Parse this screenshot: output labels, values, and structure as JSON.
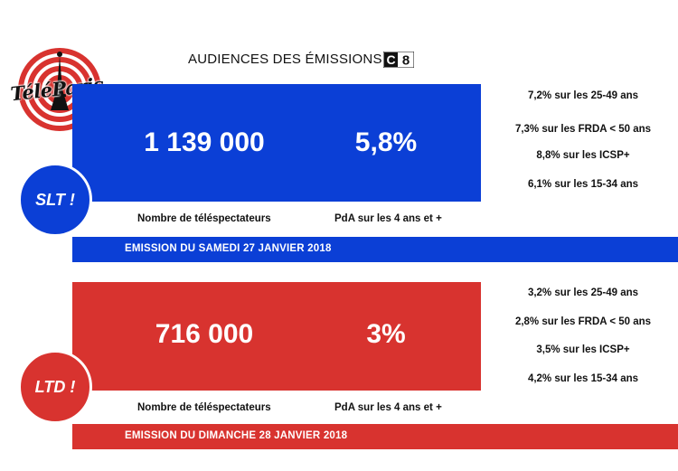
{
  "header": {
    "title": "AUDIENCES DES ÉMISSIONS",
    "channel": "8",
    "channel_letter": "C"
  },
  "logo": {
    "text": "TéléParis"
  },
  "slt": {
    "badge": "SLT !",
    "viewers": "1 139 000",
    "share": "5,8%",
    "viewers_label": "Nombre de téléspectateurs",
    "share_label": "PdA sur les 4 ans et +",
    "date_banner": "EMISSION DU SAMEDI 27 JANVIER 2018",
    "stats": [
      "7,2% sur les 25-49 ans",
      "7,3% sur les FRDA < 50 ans",
      "8,8% sur les ICSP+",
      "6,1% sur les 15-34 ans"
    ]
  },
  "ltd": {
    "badge": "LTD !",
    "viewers": "716 000",
    "share": "3%",
    "viewers_label": "Nombre de téléspectateurs",
    "share_label": "PdA sur les 4 ans et +",
    "date_banner": "EMISSION DU DIMANCHE 28 JANVIER 2018",
    "stats": [
      "3,2% sur les 25-49 ans",
      "2,8% sur les FRDA < 50 ans",
      "3,5% sur les ICSP+",
      "4,2% sur les 15-34 ans"
    ]
  },
  "colors": {
    "blue": "#0b3fd6",
    "red": "#d8332f"
  }
}
